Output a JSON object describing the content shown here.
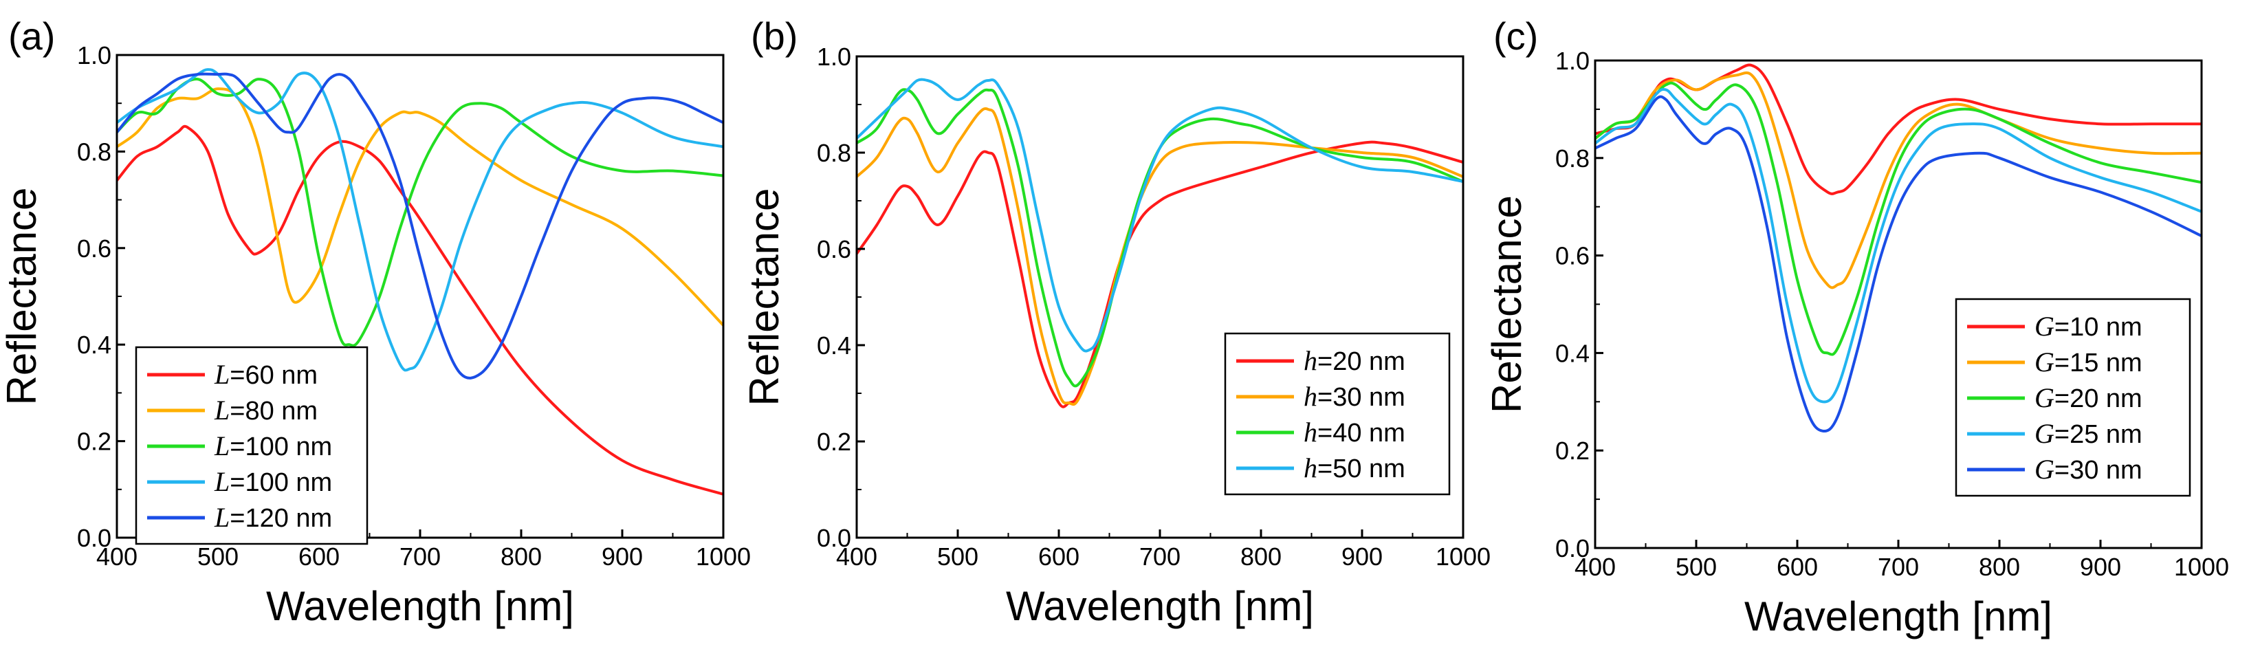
{
  "chart_data": [
    {
      "type": "line",
      "panel_label": "(a)",
      "xlabel": "Wavelength [nm]",
      "ylabel": "Reflectance",
      "xlim": [
        400,
        1000
      ],
      "ylim": [
        0.0,
        1.0
      ],
      "xticks": [
        "400",
        "500",
        "600",
        "700",
        "800",
        "900",
        "1000"
      ],
      "yticks": [
        "0.0",
        "0.2",
        "0.4",
        "0.6",
        "0.8",
        "1.0"
      ],
      "legend_position": "bottom-left",
      "series": [
        {
          "name": "L=60 nm",
          "var": "L",
          "rest": "=60 nm",
          "color": "#ff1a1a",
          "x": [
            400,
            420,
            440,
            460,
            470,
            490,
            510,
            530,
            540,
            560,
            580,
            600,
            620,
            640,
            660,
            680,
            700,
            750,
            800,
            850,
            900,
            950,
            1000
          ],
          "y": [
            0.74,
            0.79,
            0.81,
            0.84,
            0.85,
            0.8,
            0.67,
            0.6,
            0.59,
            0.63,
            0.72,
            0.79,
            0.82,
            0.81,
            0.78,
            0.72,
            0.66,
            0.5,
            0.35,
            0.24,
            0.16,
            0.12,
            0.09
          ]
        },
        {
          "name": "L=80 nm",
          "var": "L",
          "rest": "=80 nm",
          "color": "#ffb000",
          "x": [
            400,
            420,
            440,
            460,
            480,
            500,
            520,
            540,
            560,
            570,
            580,
            600,
            620,
            640,
            660,
            680,
            690,
            700,
            720,
            750,
            800,
            850,
            900,
            950,
            1000
          ],
          "y": [
            0.81,
            0.84,
            0.89,
            0.91,
            0.91,
            0.93,
            0.91,
            0.81,
            0.61,
            0.51,
            0.49,
            0.55,
            0.67,
            0.78,
            0.85,
            0.88,
            0.88,
            0.88,
            0.86,
            0.81,
            0.74,
            0.69,
            0.64,
            0.55,
            0.44
          ]
        },
        {
          "name": "L=100 nm",
          "var": "L",
          "rest": "=100 nm",
          "color": "#22dd22",
          "x": [
            400,
            420,
            440,
            460,
            480,
            500,
            520,
            540,
            560,
            580,
            600,
            620,
            630,
            640,
            660,
            680,
            700,
            720,
            740,
            760,
            780,
            800,
            850,
            900,
            950,
            1000
          ],
          "y": [
            0.84,
            0.88,
            0.88,
            0.93,
            0.95,
            0.92,
            0.92,
            0.95,
            0.92,
            0.8,
            0.58,
            0.42,
            0.4,
            0.41,
            0.5,
            0.64,
            0.76,
            0.84,
            0.89,
            0.9,
            0.89,
            0.86,
            0.79,
            0.76,
            0.76,
            0.75
          ]
        },
        {
          "name": "L=100 nm",
          "var": "L",
          "rest": "=100 nm",
          "color": "#22b4f0",
          "x": [
            400,
            420,
            440,
            460,
            480,
            490,
            500,
            520,
            540,
            560,
            580,
            600,
            620,
            640,
            660,
            680,
            690,
            700,
            720,
            740,
            760,
            780,
            800,
            830,
            850,
            870,
            900,
            950,
            1000
          ],
          "y": [
            0.86,
            0.89,
            0.91,
            0.93,
            0.96,
            0.97,
            0.96,
            0.91,
            0.88,
            0.9,
            0.96,
            0.94,
            0.83,
            0.65,
            0.47,
            0.36,
            0.35,
            0.37,
            0.47,
            0.61,
            0.72,
            0.81,
            0.86,
            0.89,
            0.9,
            0.9,
            0.88,
            0.83,
            0.81
          ]
        },
        {
          "name": "L=120 nm",
          "var": "L",
          "rest": "=120 nm",
          "color": "#1a4de6",
          "x": [
            400,
            420,
            440,
            460,
            480,
            500,
            510,
            520,
            540,
            560,
            570,
            580,
            600,
            610,
            620,
            630,
            640,
            660,
            680,
            700,
            720,
            740,
            760,
            780,
            800,
            820,
            850,
            880,
            900,
            920,
            940,
            960,
            980,
            1000
          ],
          "y": [
            0.84,
            0.89,
            0.92,
            0.95,
            0.96,
            0.96,
            0.96,
            0.95,
            0.9,
            0.85,
            0.84,
            0.85,
            0.92,
            0.95,
            0.96,
            0.95,
            0.92,
            0.85,
            0.74,
            0.58,
            0.43,
            0.34,
            0.34,
            0.4,
            0.5,
            0.61,
            0.76,
            0.86,
            0.9,
            0.91,
            0.91,
            0.9,
            0.88,
            0.86
          ]
        }
      ]
    },
    {
      "type": "line",
      "panel_label": "(b)",
      "xlabel": "Wavelength [nm]",
      "ylabel": "Reflectance",
      "xlim": [
        400,
        1000
      ],
      "ylim": [
        0.0,
        1.0
      ],
      "xticks": [
        "400",
        "500",
        "600",
        "700",
        "800",
        "900",
        "1000"
      ],
      "yticks": [
        "0.0",
        "0.2",
        "0.4",
        "0.6",
        "0.8",
        "1.0"
      ],
      "legend_position": "bottom-right",
      "series": [
        {
          "name": "h=20 nm",
          "var": "h",
          "rest": "=20 nm",
          "color": "#ff1a1a",
          "x": [
            400,
            420,
            440,
            450,
            460,
            480,
            500,
            520,
            530,
            540,
            560,
            580,
            600,
            610,
            620,
            640,
            660,
            680,
            700,
            720,
            750,
            800,
            850,
            900,
            920,
            950,
            1000
          ],
          "y": [
            0.59,
            0.65,
            0.72,
            0.73,
            0.71,
            0.65,
            0.71,
            0.79,
            0.8,
            0.77,
            0.58,
            0.38,
            0.28,
            0.28,
            0.3,
            0.42,
            0.57,
            0.66,
            0.7,
            0.72,
            0.74,
            0.77,
            0.8,
            0.82,
            0.82,
            0.81,
            0.78
          ]
        },
        {
          "name": "h=30 nm",
          "var": "h",
          "rest": "=30 nm",
          "color": "#ffa500",
          "x": [
            400,
            420,
            440,
            450,
            460,
            480,
            500,
            520,
            530,
            540,
            560,
            580,
            600,
            610,
            620,
            640,
            660,
            680,
            700,
            720,
            750,
            800,
            850,
            900,
            950,
            1000
          ],
          "y": [
            0.75,
            0.79,
            0.86,
            0.87,
            0.84,
            0.76,
            0.82,
            0.88,
            0.89,
            0.86,
            0.68,
            0.45,
            0.3,
            0.28,
            0.29,
            0.4,
            0.57,
            0.7,
            0.78,
            0.81,
            0.82,
            0.82,
            0.81,
            0.8,
            0.79,
            0.75
          ]
        },
        {
          "name": "h=40 nm",
          "var": "h",
          "rest": "=40 nm",
          "color": "#22dd22",
          "x": [
            400,
            420,
            440,
            450,
            460,
            480,
            500,
            520,
            530,
            540,
            560,
            580,
            600,
            610,
            620,
            640,
            660,
            680,
            700,
            720,
            750,
            780,
            800,
            850,
            900,
            950,
            1000
          ],
          "y": [
            0.82,
            0.85,
            0.92,
            0.93,
            0.91,
            0.84,
            0.88,
            0.92,
            0.93,
            0.91,
            0.77,
            0.55,
            0.38,
            0.33,
            0.32,
            0.4,
            0.56,
            0.71,
            0.81,
            0.85,
            0.87,
            0.86,
            0.85,
            0.81,
            0.79,
            0.78,
            0.74
          ]
        },
        {
          "name": "h=50 nm",
          "var": "h",
          "rest": "=50 nm",
          "color": "#22b4f0",
          "x": [
            400,
            420,
            440,
            450,
            460,
            470,
            480,
            500,
            520,
            530,
            540,
            560,
            580,
            600,
            620,
            630,
            640,
            660,
            680,
            700,
            720,
            750,
            770,
            800,
            850,
            900,
            950,
            1000
          ],
          "y": [
            0.83,
            0.87,
            0.91,
            0.93,
            0.95,
            0.95,
            0.94,
            0.91,
            0.94,
            0.95,
            0.94,
            0.85,
            0.66,
            0.48,
            0.4,
            0.39,
            0.42,
            0.55,
            0.7,
            0.81,
            0.86,
            0.89,
            0.89,
            0.87,
            0.81,
            0.77,
            0.76,
            0.74
          ]
        }
      ]
    },
    {
      "type": "line",
      "panel_label": "(c)",
      "xlabel": "Wavelength [nm]",
      "ylabel": "Reflectance",
      "xlim": [
        400,
        1000
      ],
      "ylim": [
        0.0,
        1.0
      ],
      "xticks": [
        "400",
        "500",
        "600",
        "700",
        "800",
        "900",
        "1000"
      ],
      "yticks": [
        "0.0",
        "0.2",
        "0.4",
        "0.6",
        "0.8",
        "1.0"
      ],
      "legend_position": "center-right",
      "series": [
        {
          "name": "G=10 nm",
          "var": "G",
          "rest": "=10 nm",
          "color": "#ff1a1a",
          "x": [
            400,
            420,
            440,
            460,
            470,
            480,
            500,
            520,
            540,
            555,
            570,
            590,
            610,
            630,
            640,
            650,
            670,
            690,
            710,
            730,
            760,
            800,
            850,
            900,
            950,
            1000
          ],
          "y": [
            0.85,
            0.86,
            0.87,
            0.94,
            0.96,
            0.96,
            0.94,
            0.96,
            0.98,
            0.99,
            0.96,
            0.87,
            0.77,
            0.73,
            0.73,
            0.74,
            0.79,
            0.85,
            0.89,
            0.91,
            0.92,
            0.9,
            0.88,
            0.87,
            0.87,
            0.87
          ]
        },
        {
          "name": "G=15 nm",
          "var": "G",
          "rest": "=15 nm",
          "color": "#ffa500",
          "x": [
            400,
            420,
            440,
            460,
            480,
            500,
            520,
            540,
            555,
            570,
            590,
            610,
            630,
            640,
            650,
            670,
            690,
            710,
            730,
            760,
            800,
            850,
            900,
            950,
            1000
          ],
          "y": [
            0.84,
            0.87,
            0.88,
            0.94,
            0.96,
            0.94,
            0.96,
            0.97,
            0.97,
            0.91,
            0.77,
            0.61,
            0.54,
            0.54,
            0.56,
            0.66,
            0.77,
            0.85,
            0.89,
            0.91,
            0.88,
            0.84,
            0.82,
            0.81,
            0.81
          ]
        },
        {
          "name": "G=20 nm",
          "var": "G",
          "rest": "=20 nm",
          "color": "#22dd22",
          "x": [
            400,
            420,
            440,
            460,
            470,
            480,
            500,
            510,
            520,
            540,
            560,
            580,
            600,
            620,
            630,
            640,
            660,
            680,
            700,
            720,
            740,
            770,
            800,
            850,
            900,
            950,
            1000
          ],
          "y": [
            0.84,
            0.87,
            0.88,
            0.93,
            0.95,
            0.95,
            0.91,
            0.9,
            0.92,
            0.95,
            0.9,
            0.75,
            0.55,
            0.42,
            0.4,
            0.41,
            0.52,
            0.67,
            0.79,
            0.86,
            0.89,
            0.9,
            0.88,
            0.83,
            0.79,
            0.77,
            0.75
          ]
        },
        {
          "name": "G=25 nm",
          "var": "G",
          "rest": "=25 nm",
          "color": "#22b4f0",
          "x": [
            400,
            420,
            440,
            460,
            470,
            480,
            500,
            510,
            520,
            535,
            550,
            570,
            590,
            610,
            625,
            640,
            660,
            680,
            700,
            720,
            740,
            770,
            800,
            850,
            900,
            950,
            1000
          ],
          "y": [
            0.83,
            0.86,
            0.87,
            0.93,
            0.94,
            0.92,
            0.88,
            0.87,
            0.89,
            0.91,
            0.87,
            0.72,
            0.5,
            0.34,
            0.3,
            0.33,
            0.47,
            0.63,
            0.75,
            0.82,
            0.86,
            0.87,
            0.86,
            0.8,
            0.76,
            0.73,
            0.69
          ]
        },
        {
          "name": "G=30 nm",
          "var": "G",
          "rest": "=30 nm",
          "color": "#1a4de6",
          "x": [
            400,
            420,
            440,
            460,
            470,
            480,
            500,
            510,
            520,
            535,
            550,
            570,
            590,
            610,
            625,
            640,
            660,
            680,
            700,
            720,
            740,
            780,
            800,
            850,
            900,
            950,
            1000
          ],
          "y": [
            0.82,
            0.84,
            0.86,
            0.92,
            0.92,
            0.89,
            0.84,
            0.83,
            0.85,
            0.86,
            0.82,
            0.66,
            0.43,
            0.28,
            0.24,
            0.27,
            0.41,
            0.58,
            0.7,
            0.77,
            0.8,
            0.81,
            0.8,
            0.76,
            0.73,
            0.69,
            0.64
          ]
        }
      ]
    }
  ]
}
